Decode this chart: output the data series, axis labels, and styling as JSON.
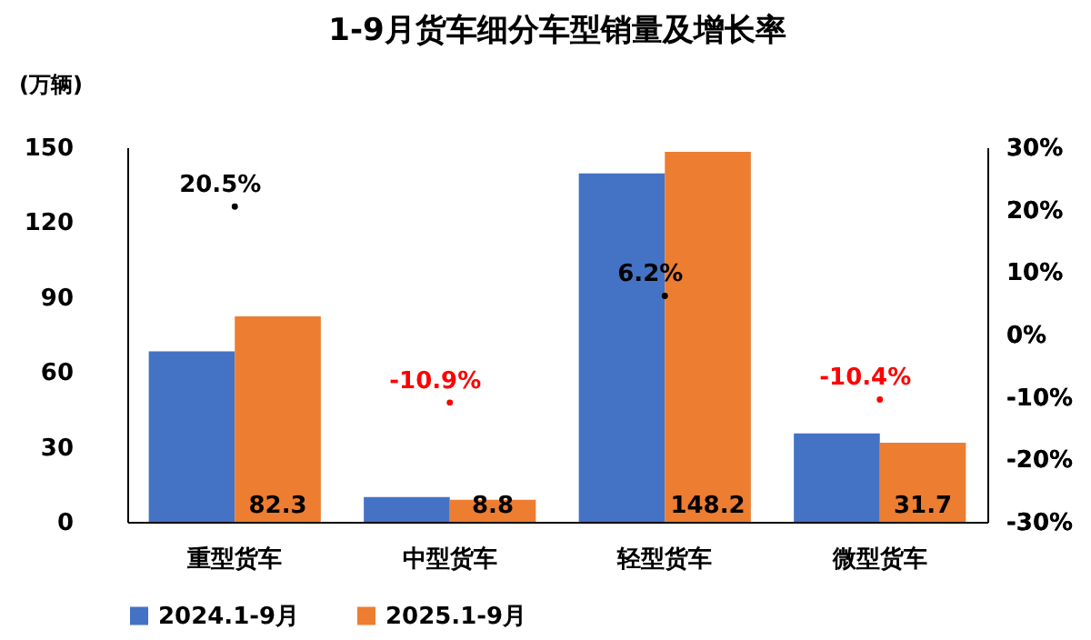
{
  "chart_data": {
    "type": "bar",
    "title": "1-9月货车细分车型销量及增长率",
    "ylabel": "(万辆)",
    "categories": [
      "重型货车",
      "中型货车",
      "轻型货车",
      "微型货车"
    ],
    "series": [
      {
        "name": "2024.1-9月",
        "color": "#4472c4",
        "values": [
          68.3,
          9.9,
          139.5,
          35.4
        ]
      },
      {
        "name": "2025.1-9月",
        "color": "#ed7d31",
        "values": [
          82.3,
          8.8,
          148.2,
          31.7
        ],
        "value_labels": [
          "82.3",
          "8.8",
          "148.2",
          "31.7"
        ]
      },
      {
        "type": "scatter",
        "axis": "y2",
        "marker": "circle",
        "colors": [
          "#000000",
          "#ff0000",
          "#000000",
          "#ff0000"
        ],
        "values": [
          20.5,
          -10.9,
          6.2,
          -10.4
        ],
        "value_labels": [
          "20.5%",
          "-10.9%",
          "6.2%",
          "-10.4%"
        ]
      }
    ],
    "ylim": [
      0,
      150
    ],
    "yticks": [
      0,
      30,
      60,
      90,
      120,
      150
    ],
    "y2lim": [
      -30,
      30
    ],
    "y2ticks": [
      {
        "value": -30,
        "label": "-30%"
      },
      {
        "value": -20,
        "label": "-20%"
      },
      {
        "value": -10,
        "label": "-10%"
      },
      {
        "value": 0,
        "label": "0%"
      },
      {
        "value": 10,
        "label": "10%"
      },
      {
        "value": 20,
        "label": "20%"
      },
      {
        "value": 30,
        "label": "30%"
      }
    ],
    "grid": false,
    "legend": "bottom"
  }
}
